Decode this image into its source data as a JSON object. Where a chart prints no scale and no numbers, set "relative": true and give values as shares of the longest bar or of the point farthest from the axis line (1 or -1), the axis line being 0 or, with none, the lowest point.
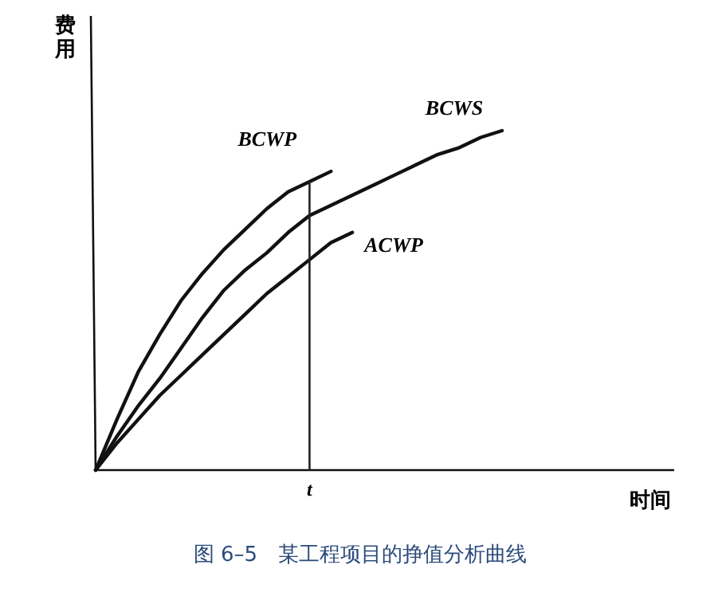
{
  "chart_data": {
    "type": "line",
    "relative": true,
    "ylabel": "费用",
    "annotations": [
      "t",
      "时间",
      "图 6–5　某工程项目的挣值分析曲线"
    ],
    "categories": [
      null,
      null,
      null,
      null,
      null,
      null,
      null,
      null,
      null,
      null,
      null,
      null,
      null,
      null,
      null,
      null,
      null,
      null,
      null,
      null
    ],
    "series": [
      {
        "name": "BCWS",
        "color": "#111111",
        "values": [
          0,
          0.1,
          0.19,
          0.27,
          0.36,
          0.45,
          0.53,
          0.59,
          0.64,
          0.7,
          0.75,
          0.78,
          0.81,
          0.84,
          0.87,
          0.9,
          0.93,
          0.95,
          0.98,
          1
        ]
      },
      {
        "name": "BCWP",
        "color": "#111111",
        "values": [
          0,
          0.15,
          0.29,
          0.4,
          0.5,
          0.58,
          0.65,
          0.71,
          0.77,
          0.82,
          0.85,
          0.88,
          null,
          null,
          null,
          null,
          null,
          null,
          null,
          null
        ]
      },
      {
        "name": "ACWP",
        "color": "#111111",
        "values": [
          0,
          0.08,
          0.15,
          0.22,
          0.28,
          0.34,
          0.4,
          0.46,
          0.52,
          0.57,
          0.62,
          0.67,
          0.7,
          null,
          null,
          null,
          null,
          null,
          null,
          null
        ]
      }
    ]
  }
}
